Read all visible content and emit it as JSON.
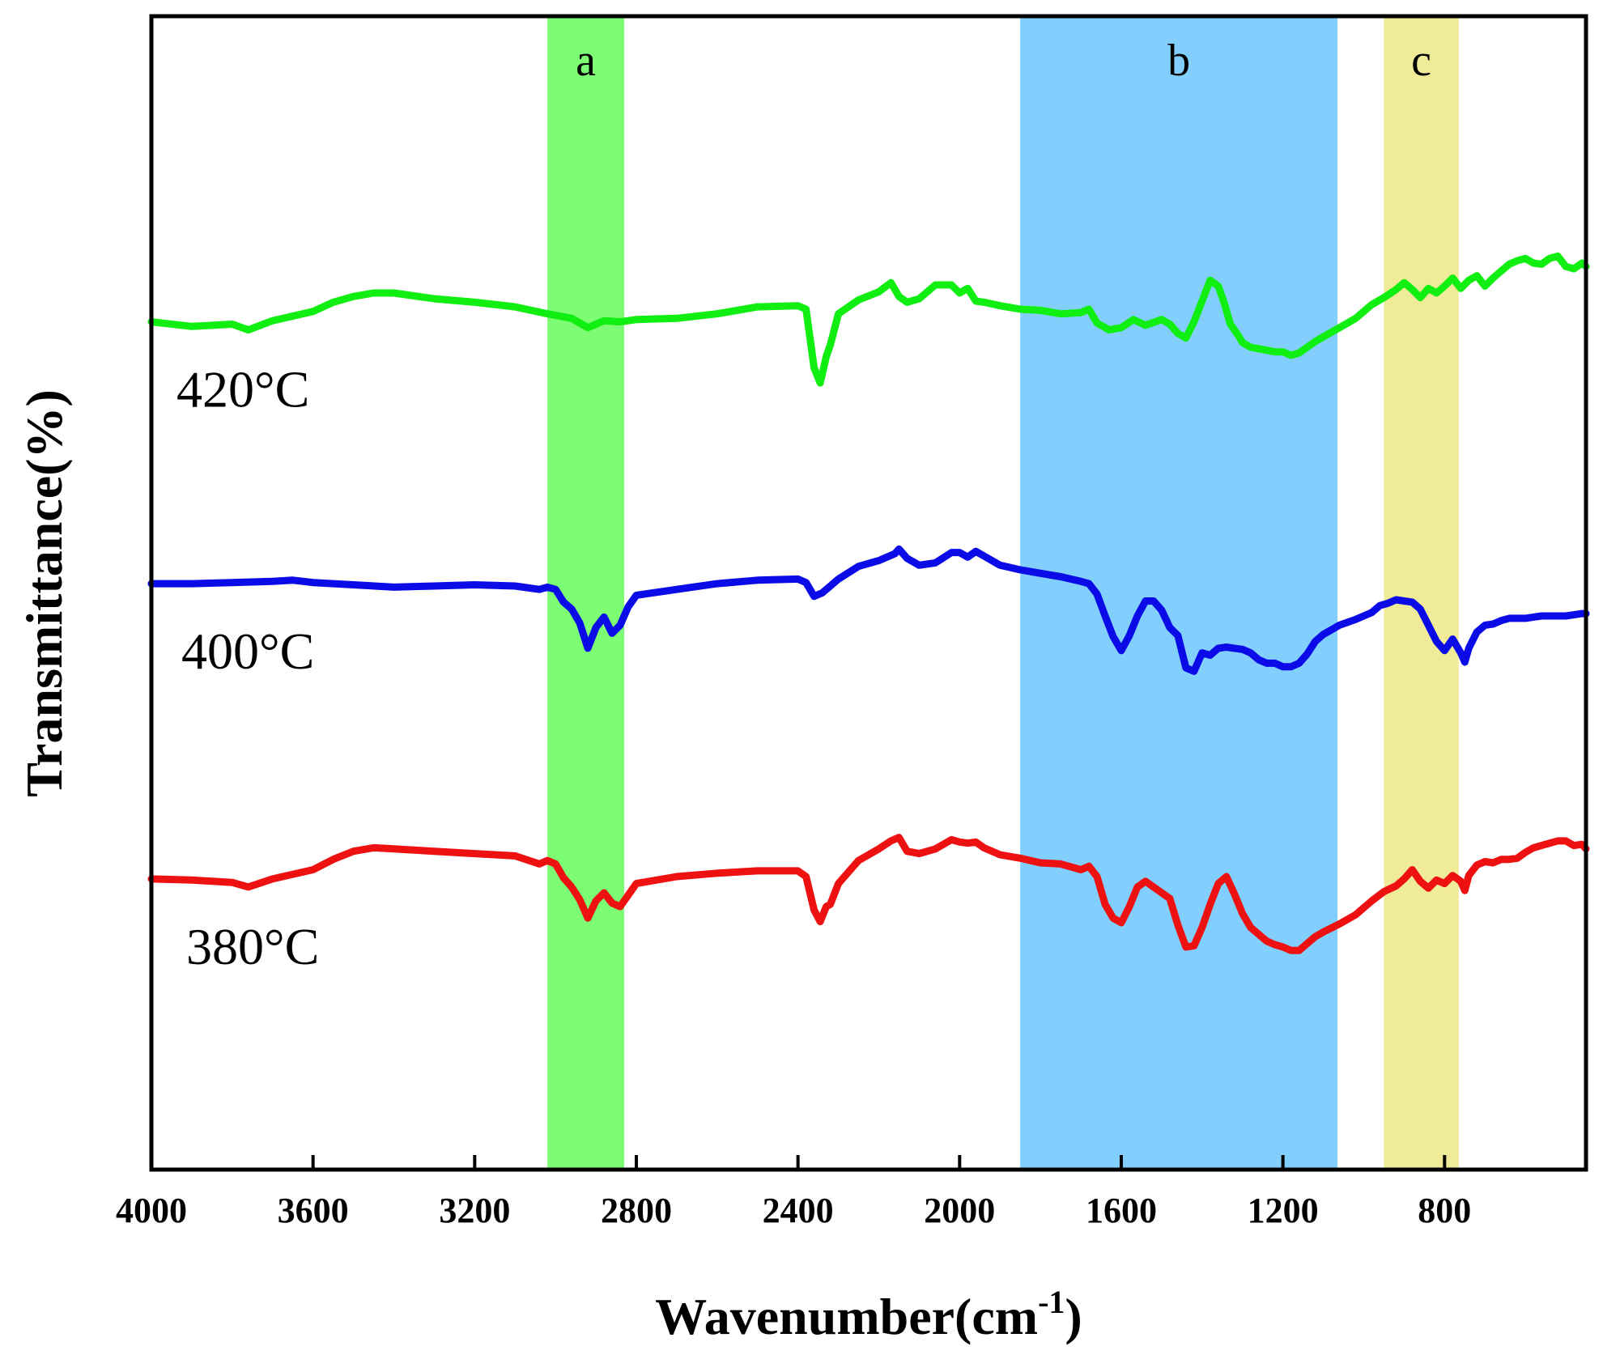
{
  "chart_data": {
    "type": "line",
    "title": "",
    "xlabel": "Wavenumber(cm",
    "xlabel_superscript": "-1",
    "xlabel_suffix": ")",
    "ylabel": "Transmittance(%)",
    "xlim": [
      4000,
      450
    ],
    "x_reversed": true,
    "ylim": [
      0,
      100
    ],
    "y_ticks_shown": false,
    "grid": false,
    "x_ticks": [
      4000,
      3600,
      3200,
      2800,
      2400,
      2000,
      1600,
      1200,
      800
    ],
    "x_tick_labels": [
      "4000",
      "3600",
      "3200",
      "2800",
      "2400",
      "2000",
      "1600",
      "1200",
      "800"
    ],
    "bands": [
      {
        "label": "a",
        "from": 3020,
        "to": 2830,
        "color": "#7dfd74"
      },
      {
        "label": "b",
        "from": 1850,
        "to": 1065,
        "color": "#82cffd"
      },
      {
        "label": "c",
        "from": 950,
        "to": 765,
        "color": "#f0eb98"
      }
    ],
    "series": [
      {
        "name": "420°C",
        "color": "#11ee11",
        "x": [
          4000,
          3900,
          3800,
          3760,
          3700,
          3600,
          3550,
          3500,
          3450,
          3400,
          3300,
          3200,
          3100,
          3020,
          2960,
          2920,
          2880,
          2840,
          2800,
          2700,
          2600,
          2500,
          2400,
          2380,
          2360,
          2345,
          2330,
          2320,
          2300,
          2250,
          2200,
          2170,
          2150,
          2130,
          2100,
          2060,
          2020,
          2000,
          1980,
          1960,
          1940,
          1900,
          1850,
          1800,
          1750,
          1700,
          1680,
          1660,
          1630,
          1600,
          1570,
          1540,
          1500,
          1480,
          1460,
          1440,
          1420,
          1400,
          1380,
          1360,
          1345,
          1330,
          1310,
          1300,
          1280,
          1250,
          1220,
          1200,
          1180,
          1160,
          1140,
          1120,
          1100,
          1060,
          1020,
          980,
          950,
          920,
          900,
          880,
          860,
          840,
          820,
          800,
          780,
          760,
          740,
          720,
          700,
          680,
          660,
          640,
          620,
          600,
          580,
          560,
          540,
          520,
          500,
          480,
          460,
          450
        ],
        "y": [
          73.5,
          73.1,
          73.3,
          72.8,
          73.6,
          74.4,
          75.2,
          75.7,
          76.0,
          76.0,
          75.5,
          75.2,
          74.8,
          74.2,
          73.8,
          73.0,
          73.6,
          73.5,
          73.7,
          73.8,
          74.2,
          74.8,
          74.9,
          74.6,
          69.5,
          68.2,
          70.5,
          71.5,
          74.2,
          75.4,
          76.1,
          76.9,
          75.7,
          75.2,
          75.5,
          76.7,
          76.7,
          76.0,
          76.4,
          75.3,
          75.2,
          74.9,
          74.6,
          74.5,
          74.2,
          74.3,
          74.6,
          73.4,
          72.8,
          73.0,
          73.7,
          73.2,
          73.7,
          73.3,
          72.5,
          72.1,
          73.5,
          75.3,
          77.1,
          76.6,
          75.1,
          73.3,
          72.3,
          71.7,
          71.3,
          71.1,
          70.9,
          70.9,
          70.6,
          70.8,
          71.3,
          71.8,
          72.2,
          73.0,
          73.8,
          75.0,
          75.6,
          76.3,
          76.9,
          76.3,
          75.6,
          76.4,
          76.0,
          76.6,
          77.3,
          76.4,
          77.1,
          77.5,
          76.6,
          77.3,
          77.9,
          78.5,
          78.8,
          79.0,
          78.6,
          78.5,
          79.0,
          79.2,
          78.3,
          78.1,
          78.6,
          78.3
        ]
      },
      {
        "name": "400°C",
        "color": "#0b0be8",
        "x": [
          4000,
          3900,
          3800,
          3700,
          3650,
          3600,
          3500,
          3400,
          3300,
          3200,
          3100,
          3040,
          3020,
          3000,
          2980,
          2960,
          2940,
          2920,
          2900,
          2880,
          2860,
          2840,
          2820,
          2800,
          2700,
          2600,
          2500,
          2400,
          2380,
          2360,
          2340,
          2320,
          2300,
          2250,
          2200,
          2160,
          2150,
          2130,
          2100,
          2060,
          2020,
          2000,
          1980,
          1960,
          1940,
          1900,
          1850,
          1800,
          1750,
          1700,
          1680,
          1660,
          1640,
          1620,
          1600,
          1580,
          1560,
          1540,
          1520,
          1500,
          1480,
          1460,
          1440,
          1420,
          1400,
          1380,
          1360,
          1340,
          1320,
          1300,
          1280,
          1260,
          1240,
          1220,
          1200,
          1180,
          1160,
          1140,
          1120,
          1100,
          1060,
          1020,
          980,
          960,
          940,
          920,
          900,
          880,
          860,
          840,
          820,
          800,
          780,
          760,
          750,
          740,
          720,
          700,
          680,
          660,
          640,
          620,
          600,
          580,
          560,
          540,
          520,
          500,
          480,
          460,
          450
        ],
        "y": [
          50.8,
          50.8,
          50.9,
          51.0,
          51.1,
          50.9,
          50.7,
          50.5,
          50.6,
          50.7,
          50.6,
          50.3,
          50.5,
          50.3,
          49.2,
          48.6,
          47.4,
          45.2,
          47.0,
          47.9,
          46.5,
          47.2,
          48.8,
          49.8,
          50.3,
          50.8,
          51.1,
          51.2,
          50.9,
          49.7,
          50.0,
          50.6,
          51.2,
          52.3,
          52.8,
          53.4,
          53.8,
          53.0,
          52.4,
          52.6,
          53.5,
          53.5,
          53.1,
          53.6,
          53.2,
          52.4,
          52.0,
          51.7,
          51.4,
          51.0,
          50.8,
          49.9,
          48.0,
          46.2,
          45.0,
          46.3,
          48.0,
          49.3,
          49.3,
          48.5,
          47.0,
          46.3,
          43.5,
          43.2,
          44.8,
          44.6,
          45.2,
          45.3,
          45.2,
          45.1,
          44.8,
          44.2,
          43.9,
          43.9,
          43.6,
          43.6,
          43.9,
          44.7,
          45.8,
          46.4,
          47.2,
          47.7,
          48.3,
          48.9,
          49.1,
          49.4,
          49.3,
          49.2,
          48.6,
          47.2,
          45.8,
          45.0,
          46.0,
          44.8,
          44.0,
          45.2,
          46.6,
          47.2,
          47.3,
          47.6,
          47.8,
          47.8,
          47.8,
          47.9,
          48.0,
          48.0,
          48.0,
          48.0,
          48.1,
          48.2,
          48.2
        ]
      },
      {
        "name": "380°C",
        "color": "#ee1111",
        "x": [
          4000,
          3900,
          3800,
          3760,
          3700,
          3600,
          3550,
          3500,
          3450,
          3400,
          3300,
          3200,
          3100,
          3040,
          3020,
          3000,
          2980,
          2960,
          2940,
          2920,
          2900,
          2880,
          2860,
          2840,
          2820,
          2800,
          2700,
          2600,
          2500,
          2400,
          2380,
          2360,
          2345,
          2330,
          2320,
          2300,
          2250,
          2200,
          2170,
          2150,
          2130,
          2100,
          2060,
          2020,
          2000,
          1980,
          1960,
          1940,
          1900,
          1850,
          1800,
          1750,
          1700,
          1680,
          1660,
          1640,
          1620,
          1600,
          1580,
          1560,
          1540,
          1520,
          1500,
          1480,
          1460,
          1440,
          1420,
          1400,
          1380,
          1360,
          1340,
          1320,
          1300,
          1280,
          1260,
          1240,
          1220,
          1200,
          1180,
          1160,
          1140,
          1120,
          1100,
          1060,
          1020,
          980,
          950,
          920,
          900,
          880,
          860,
          840,
          820,
          800,
          780,
          760,
          750,
          740,
          720,
          700,
          680,
          660,
          640,
          620,
          600,
          580,
          560,
          540,
          520,
          500,
          480,
          460,
          450
        ],
        "y": [
          25.2,
          25.1,
          24.9,
          24.5,
          25.2,
          26.0,
          26.9,
          27.6,
          27.9,
          27.8,
          27.6,
          27.4,
          27.2,
          26.5,
          26.8,
          26.5,
          25.3,
          24.5,
          23.4,
          21.8,
          23.3,
          24.0,
          23.1,
          22.8,
          23.8,
          24.8,
          25.4,
          25.7,
          25.9,
          25.9,
          25.4,
          22.5,
          21.5,
          22.8,
          23.0,
          24.8,
          26.8,
          27.8,
          28.5,
          28.8,
          27.6,
          27.4,
          27.8,
          28.6,
          28.4,
          28.3,
          28.4,
          27.9,
          27.3,
          27.0,
          26.6,
          26.5,
          26.0,
          26.3,
          25.4,
          23.0,
          21.8,
          21.4,
          22.8,
          24.5,
          25.0,
          24.5,
          24.0,
          23.5,
          21.2,
          19.3,
          19.4,
          21.0,
          23.0,
          24.8,
          25.4,
          23.9,
          22.2,
          21.0,
          20.4,
          19.8,
          19.5,
          19.3,
          19.0,
          19.0,
          19.6,
          20.2,
          20.6,
          21.3,
          22.1,
          23.3,
          24.1,
          24.6,
          25.2,
          26.0,
          25.0,
          24.4,
          25.1,
          24.8,
          25.5,
          25.0,
          24.2,
          25.5,
          26.4,
          26.7,
          26.6,
          26.9,
          26.9,
          27.0,
          27.5,
          27.9,
          28.1,
          28.3,
          28.5,
          28.5,
          28.1,
          28.2,
          27.8
        ]
      }
    ]
  }
}
